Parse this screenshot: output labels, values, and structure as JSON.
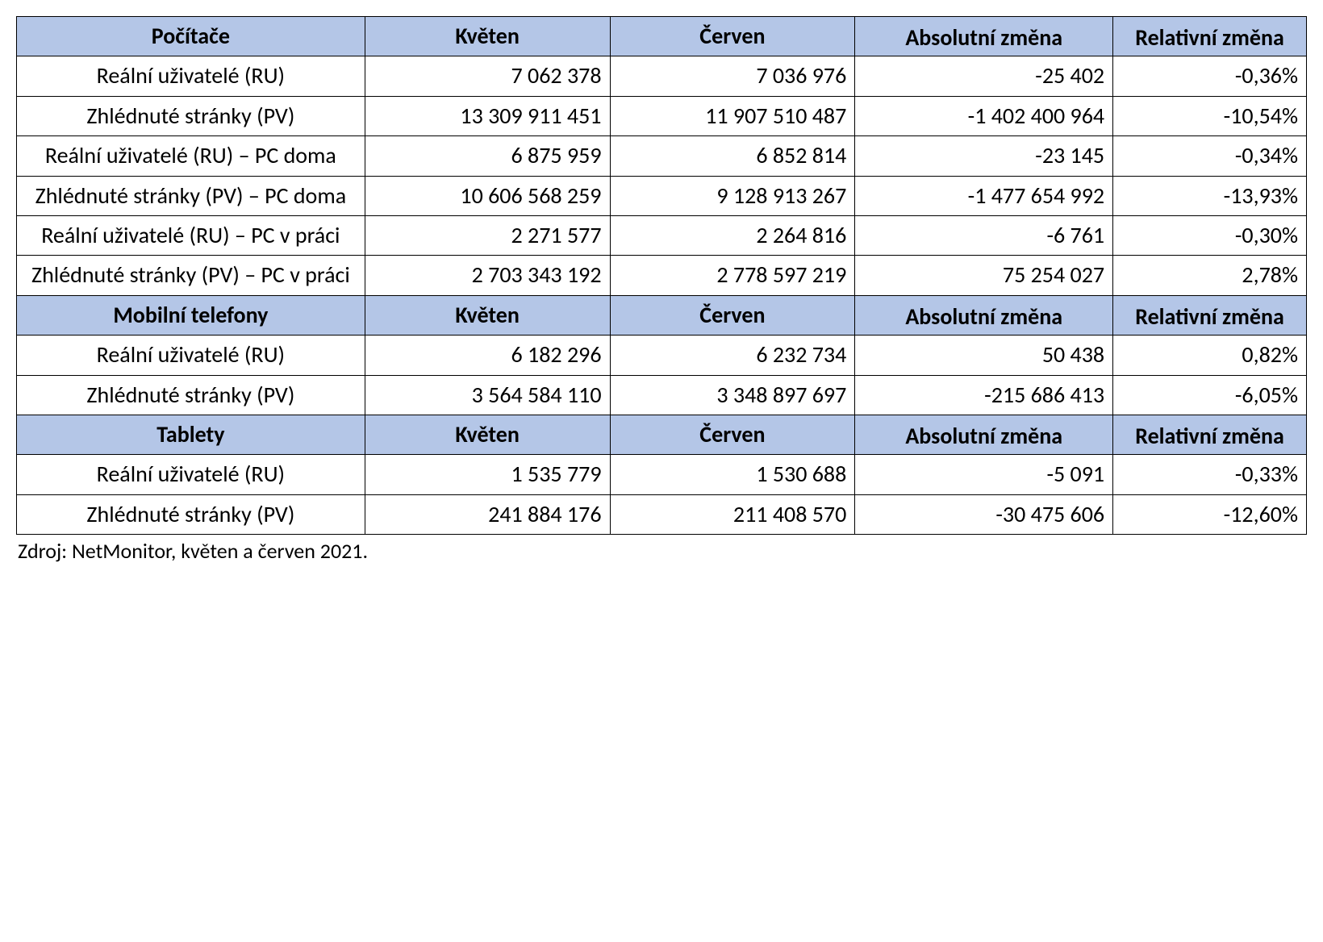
{
  "style": {
    "header_bg": "#b4c6e7",
    "border_color": "#000000",
    "font_family": "Calibri",
    "header_fontsize_pt": 21,
    "cell_fontsize_pt": 21,
    "source_fontsize_pt": 19,
    "column_widths_pct": [
      27,
      19,
      19,
      20,
      15
    ],
    "label_align": "center",
    "number_align": "right",
    "header_align": "center"
  },
  "sections": [
    {
      "title": "Počítače",
      "columns": [
        "Květen",
        "Červen",
        "Absolutní změna",
        "Relativní změna"
      ],
      "rows": [
        {
          "label": "Reální uživatelé (RU)",
          "may": "7 062 378",
          "jun": "7 036 976",
          "abs": "-25 402",
          "rel": "-0,36%"
        },
        {
          "label": "Zhlédnuté stránky (PV)",
          "may": "13 309 911 451",
          "jun": "11 907 510 487",
          "abs": "-1 402 400 964",
          "rel": "-10,54%"
        },
        {
          "label": "Reální uživatelé (RU) – PC doma",
          "may": "6 875 959",
          "jun": "6 852 814",
          "abs": "-23 145",
          "rel": "-0,34%"
        },
        {
          "label": "Zhlédnuté stránky (PV) – PC doma",
          "may": "10 606 568 259",
          "jun": "9 128 913 267",
          "abs": "-1 477 654 992",
          "rel": "-13,93%"
        },
        {
          "label": "Reální uživatelé (RU) – PC v práci",
          "may": "2 271 577",
          "jun": "2 264 816",
          "abs": "-6 761",
          "rel": "-0,30%"
        },
        {
          "label": "Zhlédnuté stránky (PV) – PC v práci",
          "may": "2 703 343 192",
          "jun": "2 778 597 219",
          "abs": "75 254 027",
          "rel": "2,78%"
        }
      ]
    },
    {
      "title": "Mobilní telefony",
      "columns": [
        "Květen",
        "Červen",
        "Absolutní změna",
        "Relativní změna"
      ],
      "rows": [
        {
          "label": "Reální uživatelé (RU)",
          "may": "6 182 296",
          "jun": "6 232 734",
          "abs": "50 438",
          "rel": "0,82%"
        },
        {
          "label": "Zhlédnuté stránky (PV)",
          "may": "3 564 584 110",
          "jun": "3 348 897 697",
          "abs": "-215 686 413",
          "rel": "-6,05%"
        }
      ]
    },
    {
      "title": "Tablety",
      "columns": [
        "Květen",
        "Červen",
        "Absolutní změna",
        "Relativní změna"
      ],
      "rows": [
        {
          "label": "Reální uživatelé (RU)",
          "may": "1 535 779",
          "jun": "1 530 688",
          "abs": "-5 091",
          "rel": "-0,33%"
        },
        {
          "label": "Zhlédnuté stránky (PV)",
          "may": "241 884 176",
          "jun": "211 408 570",
          "abs": "-30 475 606",
          "rel": "-12,60%"
        }
      ]
    }
  ],
  "source": "Zdroj: NetMonitor, květen a červen 2021."
}
